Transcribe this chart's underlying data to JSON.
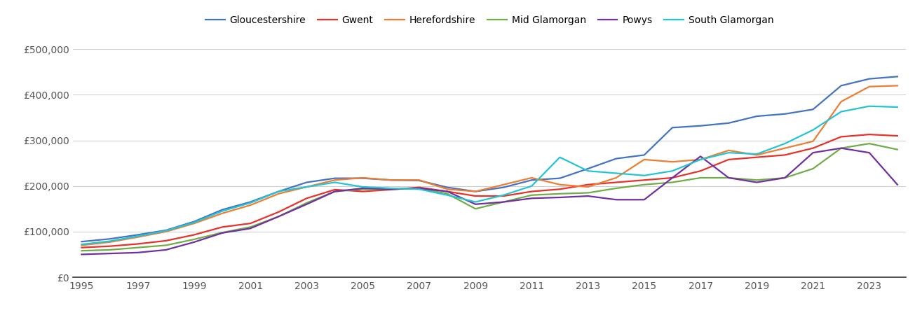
{
  "years": [
    1995,
    1996,
    1997,
    1998,
    1999,
    2000,
    2001,
    2002,
    2003,
    2004,
    2005,
    2006,
    2007,
    2008,
    2009,
    2010,
    2011,
    2012,
    2013,
    2014,
    2015,
    2016,
    2017,
    2018,
    2019,
    2020,
    2021,
    2022,
    2023,
    2024
  ],
  "series": {
    "Gloucestershire": {
      "color": "#4472C4",
      "values": [
        78000,
        84000,
        93000,
        103000,
        122000,
        148000,
        165000,
        188000,
        208000,
        217000,
        217000,
        213000,
        212000,
        197000,
        188000,
        197000,
        213000,
        217000,
        238000,
        260000,
        268000,
        328000,
        332000,
        338000,
        353000,
        358000,
        368000,
        420000,
        435000,
        440000
      ]
    },
    "Gwent": {
      "color": "#E8312A",
      "values": [
        65000,
        68000,
        73000,
        80000,
        93000,
        110000,
        118000,
        143000,
        173000,
        192000,
        188000,
        192000,
        197000,
        188000,
        178000,
        178000,
        188000,
        193000,
        203000,
        208000,
        213000,
        218000,
        233000,
        258000,
        263000,
        268000,
        283000,
        308000,
        313000,
        310000
      ]
    },
    "Herefordshire": {
      "color": "#ED7D31",
      "values": [
        70000,
        77000,
        88000,
        100000,
        118000,
        140000,
        158000,
        183000,
        198000,
        213000,
        218000,
        213000,
        213000,
        193000,
        188000,
        203000,
        218000,
        203000,
        198000,
        218000,
        258000,
        253000,
        258000,
        278000,
        268000,
        283000,
        298000,
        385000,
        418000,
        420000
      ]
    },
    "Mid Glamorgan": {
      "color": "#70AD47",
      "values": [
        58000,
        60000,
        65000,
        70000,
        83000,
        98000,
        110000,
        133000,
        163000,
        188000,
        193000,
        193000,
        195000,
        183000,
        150000,
        165000,
        180000,
        183000,
        185000,
        195000,
        203000,
        208000,
        218000,
        218000,
        213000,
        218000,
        238000,
        283000,
        293000,
        280000
      ]
    },
    "Powys": {
      "color": "#7030A0",
      "values": [
        50000,
        52000,
        54000,
        60000,
        77000,
        97000,
        107000,
        133000,
        160000,
        188000,
        195000,
        193000,
        195000,
        188000,
        160000,
        165000,
        173000,
        175000,
        178000,
        170000,
        170000,
        218000,
        265000,
        218000,
        208000,
        218000,
        273000,
        283000,
        273000,
        203000
      ]
    },
    "South Glamorgan": {
      "color": "#23C4D4",
      "values": [
        72000,
        79000,
        90000,
        102000,
        120000,
        145000,
        163000,
        188000,
        198000,
        208000,
        198000,
        195000,
        193000,
        180000,
        165000,
        180000,
        200000,
        263000,
        233000,
        228000,
        223000,
        233000,
        258000,
        273000,
        270000,
        293000,
        323000,
        363000,
        375000,
        373000
      ]
    }
  },
  "ylim": [
    0,
    525000
  ],
  "yticks": [
    0,
    100000,
    200000,
    300000,
    400000,
    500000
  ],
  "ytick_labels": [
    "£0",
    "£100,000",
    "£200,000",
    "£300,000",
    "£400,000",
    "£500,000"
  ],
  "xticks": [
    1995,
    1997,
    1999,
    2001,
    2003,
    2005,
    2007,
    2009,
    2011,
    2013,
    2015,
    2017,
    2019,
    2021,
    2023
  ],
  "background_color": "#ffffff",
  "grid_color": "#d0d0d0",
  "line_width": 1.6,
  "legend_order": [
    "Gloucestershire",
    "Gwent",
    "Herefordshire",
    "Mid Glamorgan",
    "Powys",
    "South Glamorgan"
  ]
}
